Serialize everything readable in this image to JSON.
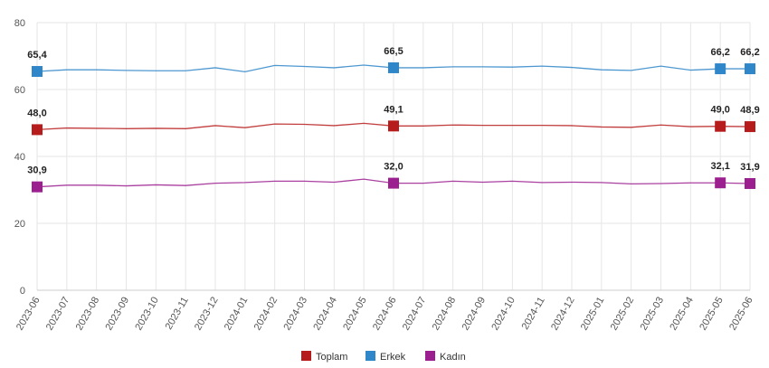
{
  "chart_data": {
    "type": "line",
    "title": "",
    "xlabel": "",
    "ylabel": "",
    "ylim": [
      0,
      80
    ],
    "yticks": [
      "0",
      "20",
      "40",
      "60",
      "80"
    ],
    "grid": true,
    "legend_position": "bottom",
    "x": [
      "2023-06",
      "2023-07",
      "2023-08",
      "2023-09",
      "2023-10",
      "2023-11",
      "2023-12",
      "2024-01",
      "2024-02",
      "2024-03",
      "2024-04",
      "2024-05",
      "2024-06",
      "2024-07",
      "2024-08",
      "2024-09",
      "2024-10",
      "2024-11",
      "2024-12",
      "2025-01",
      "2025-02",
      "2025-03",
      "2025-04",
      "2025-05",
      "2025-06"
    ],
    "series": [
      {
        "name": "Toplam",
        "color": "#b71c1c",
        "values": [
          48.0,
          48.5,
          48.4,
          48.3,
          48.4,
          48.3,
          49.2,
          48.6,
          49.7,
          49.6,
          49.2,
          49.9,
          49.1,
          49.1,
          49.4,
          49.3,
          49.3,
          49.3,
          49.2,
          48.8,
          48.7,
          49.4,
          48.9,
          49.0,
          48.9
        ],
        "labels": {
          "0": "48,0",
          "12": "49,1",
          "23": "49,0",
          "24": "48,9"
        }
      },
      {
        "name": "Erkek",
        "color": "#2f86c9",
        "values": [
          65.4,
          65.9,
          65.9,
          65.7,
          65.6,
          65.6,
          66.5,
          65.3,
          67.2,
          66.9,
          66.5,
          67.3,
          66.5,
          66.5,
          66.8,
          66.8,
          66.7,
          67.0,
          66.6,
          65.9,
          65.7,
          67.0,
          65.8,
          66.2,
          66.2
        ],
        "labels": {
          "0": "65,4",
          "12": "66,5",
          "23": "66,2",
          "24": "66,2"
        }
      },
      {
        "name": "Kadın",
        "color": "#9b1f8f",
        "values": [
          30.9,
          31.4,
          31.4,
          31.2,
          31.5,
          31.3,
          32.0,
          32.2,
          32.6,
          32.6,
          32.3,
          33.2,
          32.0,
          32.0,
          32.6,
          32.3,
          32.6,
          32.2,
          32.3,
          32.2,
          31.8,
          31.9,
          32.1,
          32.1,
          31.9
        ],
        "labels": {
          "0": "30,9",
          "12": "32,0",
          "23": "32,1",
          "24": "31,9"
        }
      }
    ]
  }
}
